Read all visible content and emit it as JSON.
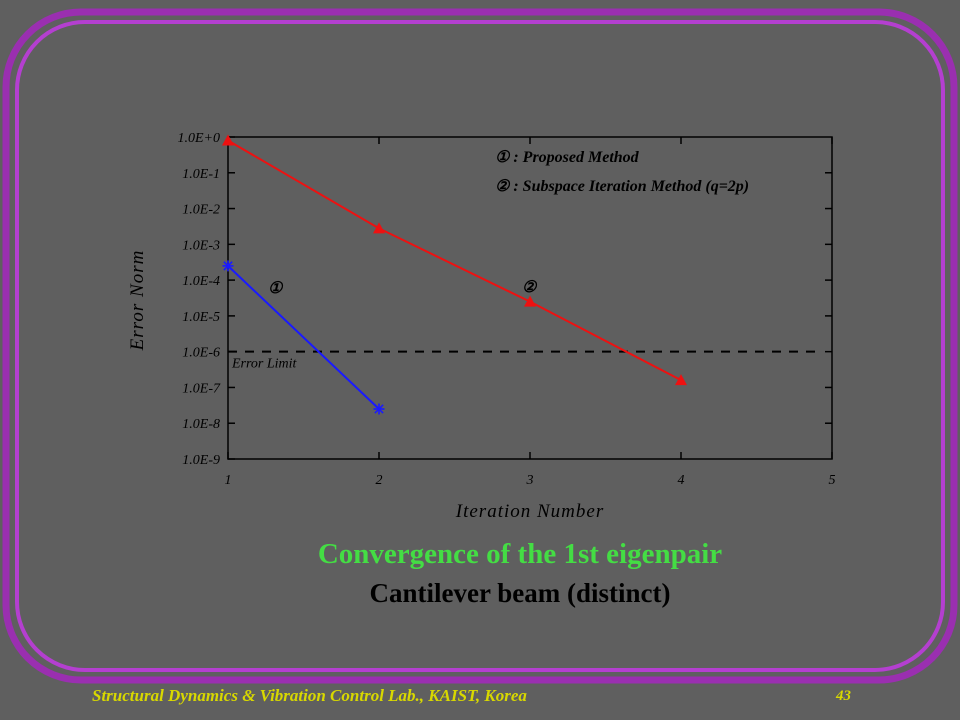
{
  "colors": {
    "background": "#5f5f5f",
    "frame_outer": "#9a2fb0",
    "frame_inner": "#b43fd0",
    "caption_title": "#44dd44",
    "footer_text": "#d8d800",
    "series1": "#1a1aff",
    "series2": "#ee1111"
  },
  "legend": {
    "item1": "① : Proposed Method",
    "item2": "② : Subspace Iteration Method (q=2p)"
  },
  "series_markers": {
    "m1": "①",
    "m2": "②"
  },
  "error_limit_label": "Error Limit",
  "caption": {
    "title": "Convergence of the 1st eigenpair",
    "subtitle": "Cantilever beam (distinct)"
  },
  "footer": {
    "lab": "Structural Dynamics & Vibration Control Lab., KAIST, Korea",
    "page": "43"
  },
  "chart_data": {
    "type": "line",
    "xlabel": "Iteration Number",
    "ylabel": "Error Norm",
    "x_ticks": [
      "1",
      "2",
      "3",
      "4",
      "5"
    ],
    "y_ticks": [
      "1.0E+0",
      "1.0E-1",
      "1.0E-2",
      "1.0E-3",
      "1.0E-4",
      "1.0E-5",
      "1.0E-6",
      "1.0E-7",
      "1.0E-8",
      "1.0E-9"
    ],
    "xlim": [
      1,
      5
    ],
    "ylim": [
      1e-09,
      1
    ],
    "y_scale": "log",
    "error_limit": 1e-06,
    "series": [
      {
        "marker": "asterisk",
        "x": [
          1,
          2
        ],
        "y": [
          0.00025,
          2.5e-08
        ]
      },
      {
        "marker": "triangle",
        "x": [
          1,
          2,
          3,
          4
        ],
        "y": [
          0.8,
          0.0028,
          2.5e-05,
          1.6e-07
        ]
      }
    ]
  }
}
